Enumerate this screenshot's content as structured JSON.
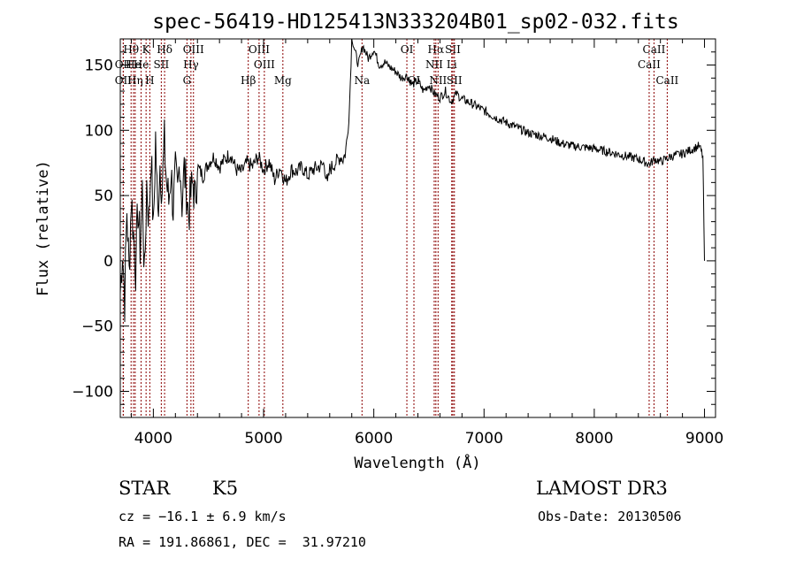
{
  "colors": {
    "axes": "#000000",
    "spectrum": "#000000",
    "lines": "#8b0000",
    "background": "#ffffff"
  },
  "info": {
    "classification": "STAR",
    "subclass": "K5",
    "survey": "LAMOST DR3",
    "cz": "cz = −16.1 ± 6.9 km/s",
    "obs_date": "Obs-Date: 20130506",
    "coords": "RA = 191.86861, DEC =  31.97210"
  },
  "chart_data": {
    "type": "line",
    "title": "spec-56419-HD125413N333204B01_sp02-032.fits",
    "xlabel": "Wavelength (Å)",
    "ylabel": "Flux (relative)",
    "xlim": [
      3700,
      9100
    ],
    "ylim": [
      -120,
      170
    ],
    "xticks": [
      4000,
      5000,
      6000,
      7000,
      8000,
      9000
    ],
    "xtick_labels": [
      "4000",
      "5000",
      "6000",
      "7000",
      "8000",
      "9000"
    ],
    "yticks": [
      -100,
      -50,
      0,
      50,
      100,
      150
    ],
    "ytick_labels": [
      "−100",
      "−50",
      "0",
      "50",
      "100",
      "150"
    ],
    "grid": false,
    "series": [
      {
        "name": "spectrum",
        "x": [
          3700,
          3720,
          3740,
          3760,
          3780,
          3800,
          3820,
          3840,
          3860,
          3880,
          3900,
          3920,
          3940,
          3960,
          3980,
          4000,
          4020,
          4040,
          4060,
          4080,
          4100,
          4120,
          4140,
          4160,
          4180,
          4200,
          4220,
          4240,
          4260,
          4280,
          4300,
          4320,
          4340,
          4360,
          4380,
          4400,
          4450,
          4500,
          4550,
          4600,
          4650,
          4700,
          4750,
          4800,
          4850,
          4900,
          4950,
          5000,
          5050,
          5100,
          5150,
          5200,
          5250,
          5300,
          5350,
          5400,
          5450,
          5500,
          5550,
          5580,
          5600,
          5650,
          5700,
          5720,
          5740,
          5760,
          5780,
          5800,
          5830,
          5860,
          5900,
          5950,
          6000,
          6050,
          6100,
          6150,
          6200,
          6250,
          6300,
          6350,
          6400,
          6450,
          6500,
          6550,
          6600,
          6650,
          6700,
          6750,
          6800,
          6900,
          7000,
          7100,
          7200,
          7300,
          7400,
          7500,
          7600,
          7700,
          7800,
          7900,
          8000,
          8100,
          8200,
          8300,
          8400,
          8500,
          8550,
          8600,
          8700,
          8800,
          8900,
          8950,
          8970,
          8985,
          9000
        ],
        "values": [
          -25,
          10,
          -30,
          40,
          -10,
          50,
          20,
          -5,
          40,
          10,
          55,
          -15,
          60,
          30,
          85,
          20,
          95,
          35,
          75,
          55,
          90,
          60,
          45,
          70,
          40,
          65,
          50,
          80,
          45,
          70,
          55,
          35,
          50,
          60,
          45,
          72,
          65,
          75,
          80,
          72,
          78,
          82,
          70,
          68,
          75,
          72,
          80,
          70,
          76,
          62,
          72,
          60,
          70,
          68,
          72,
          65,
          70,
          72,
          74,
          58,
          70,
          75,
          80,
          78,
          82,
          95,
          120,
          172,
          160,
          150,
          165,
          155,
          162,
          150,
          152,
          148,
          145,
          140,
          142,
          135,
          138,
          130,
          135,
          128,
          125,
          130,
          122,
          128,
          124,
          120,
          115,
          110,
          106,
          102,
          98,
          96,
          94,
          90,
          88,
          87,
          86,
          84,
          82,
          80,
          78,
          74,
          78,
          76,
          80,
          82,
          86,
          88,
          84,
          80,
          0
        ]
      }
    ],
    "spectral_lines": [
      {
        "label": "Hθ",
        "x": 3798,
        "row": 0
      },
      {
        "label": "OII",
        "x": 3727,
        "row": 1
      },
      {
        "label": "OII",
        "x": 3727,
        "row": 2
      },
      {
        "label": "He",
        "x": 3820,
        "row": 1
      },
      {
        "label": "Hη",
        "x": 3835,
        "row": 2
      },
      {
        "label": "He",
        "x": 3889,
        "row": 1
      },
      {
        "label": "K",
        "x": 3934,
        "row": 0
      },
      {
        "label": "H",
        "x": 3968,
        "row": 2
      },
      {
        "label": "SII",
        "x": 4072,
        "row": 1
      },
      {
        "label": "Hδ",
        "x": 4102,
        "row": 0
      },
      {
        "label": "OIII",
        "x": 4364,
        "row": 0
      },
      {
        "label": "Hγ",
        "x": 4341,
        "row": 1
      },
      {
        "label": "G",
        "x": 4305,
        "row": 2
      },
      {
        "label": "OIII",
        "x": 4959,
        "row": 0
      },
      {
        "label": "OIII",
        "x": 5007,
        "row": 1
      },
      {
        "label": "Hβ",
        "x": 4861,
        "row": 2
      },
      {
        "label": "Mg",
        "x": 5175,
        "row": 2
      },
      {
        "label": "Na",
        "x": 5893,
        "row": 2
      },
      {
        "label": "OI",
        "x": 6300,
        "row": 0
      },
      {
        "label": "OI",
        "x": 6364,
        "row": 2
      },
      {
        "label": "Hα",
        "x": 6563,
        "row": 0
      },
      {
        "label": "NII",
        "x": 6548,
        "row": 1
      },
      {
        "label": "NII",
        "x": 6583,
        "row": 2
      },
      {
        "label": "SII",
        "x": 6717,
        "row": 0
      },
      {
        "label": "Li",
        "x": 6707,
        "row": 1
      },
      {
        "label": "SII",
        "x": 6731,
        "row": 2
      },
      {
        "label": "CaII",
        "x": 8542,
        "row": 0
      },
      {
        "label": "CaII",
        "x": 8498,
        "row": 1
      },
      {
        "label": "CaII",
        "x": 8662,
        "row": 2
      }
    ]
  }
}
